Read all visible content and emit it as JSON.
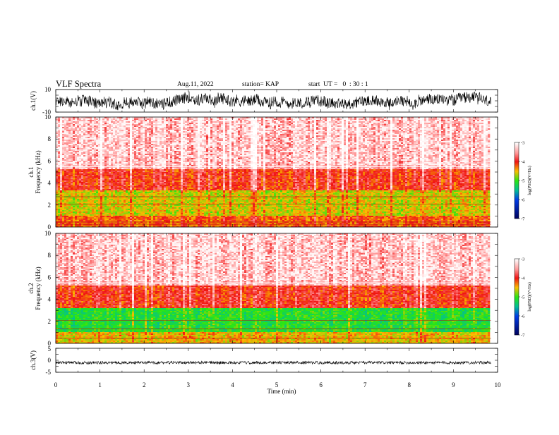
{
  "header": {
    "title": "VLF Spectra",
    "date": "Aug.11, 2022",
    "station": "station= KAP",
    "start": "start  UT =   0  : 30 : 1"
  },
  "chart_data": [
    {
      "type": "line",
      "ylabel": "ch.1(V)",
      "ylim": [
        -10,
        10
      ],
      "yticks": [
        "10",
        "-10"
      ],
      "xlim": [
        0,
        10
      ],
      "series_note": "dense black waveform spanning roughly -8 to 9 V"
    },
    {
      "type": "heatmap",
      "ylabel": "ch.1\nFrequency (kHz)",
      "ylabel_lines": [
        "ch.1",
        "Frequency (kHz)"
      ],
      "ylim": [
        0,
        10
      ],
      "yticks": [
        "0",
        "2",
        "4",
        "6",
        "8",
        "10"
      ],
      "xlim": [
        0,
        10
      ],
      "data_extent_x": [
        0,
        9.85
      ],
      "colorbar": {
        "label": "log(PSD)(V²/Hz)",
        "range": [
          -7,
          -3
        ],
        "ticks": [
          "-3",
          "-4",
          "-5",
          "-6",
          "-7"
        ]
      },
      "bands": [
        {
          "f": [
            0,
            1.0
          ],
          "level": -4.2
        },
        {
          "f": [
            1.0,
            3.3
          ],
          "level": -4.6
        },
        {
          "f": [
            3.3,
            5.2
          ],
          "level": -4.0
        },
        {
          "f": [
            5.2,
            10
          ],
          "level": -3.4
        }
      ],
      "lines_khz": [
        5.5,
        2.75,
        2.1,
        0.45,
        0.25
      ]
    },
    {
      "type": "heatmap",
      "ylabel": "ch.2\nFrequency (kHz)",
      "ylabel_lines": [
        "ch.2",
        "Frequency (kHz)"
      ],
      "ylim": [
        0,
        10
      ],
      "yticks": [
        "0",
        "2",
        "4",
        "6",
        "8",
        "10"
      ],
      "xlim": [
        0,
        10
      ],
      "data_extent_x": [
        0,
        9.85
      ],
      "colorbar": {
        "label": "log(PSD)(V²/Hz)",
        "range": [
          -7,
          -3
        ],
        "ticks": [
          "-3",
          "-4",
          "-5",
          "-6",
          "-7"
        ]
      },
      "bands": [
        {
          "f": [
            0,
            1.0
          ],
          "level": -4.5
        },
        {
          "f": [
            1.0,
            3.2
          ],
          "level": -5.1
        },
        {
          "f": [
            3.2,
            5.2
          ],
          "level": -4.0
        },
        {
          "f": [
            5.2,
            10
          ],
          "level": -3.4
        }
      ],
      "lines_khz": [
        5.5,
        2.1,
        1.3,
        0.45
      ]
    },
    {
      "type": "line",
      "ylabel": "ch.3(V)",
      "ylim": [
        -5,
        5
      ],
      "yticks": [
        "5",
        "0",
        "-5"
      ],
      "xlim": [
        0,
        10
      ],
      "xlabel": "Time (min)",
      "xticks": [
        "0",
        "1",
        "2",
        "3",
        "4",
        "5",
        "6",
        "7",
        "8",
        "9",
        "10"
      ],
      "series_note": "dense band between about -1.5 and -0.5 V"
    }
  ],
  "colors": {
    "axis": "#000000",
    "background": "#ffffff"
  }
}
